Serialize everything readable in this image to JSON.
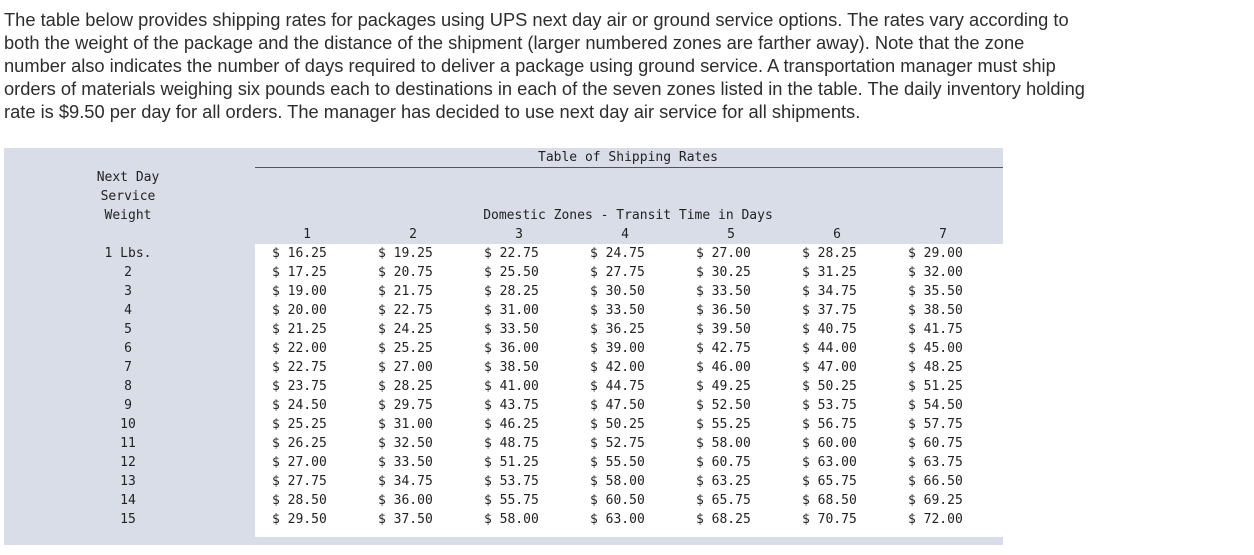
{
  "intro": {
    "lines": [
      "The table below provides shipping rates for packages using UPS next day air or ground service options. The rates vary according to",
      "both the weight of the package and the distance of the shipment (larger numbered zones are farther away). Note that the zone",
      "number also indicates the number of days required to deliver a package using ground service. A transportation manager must ship",
      "orders of materials weighing six pounds each to destinations in each of the seven zones listed in the table. The daily inventory holding",
      "rate is $9.50 per day for all orders. The manager has decided to use next day air service for all shipments."
    ]
  },
  "table": {
    "title": "Table of Shipping Rates",
    "row_header": [
      "Next Day",
      "Service",
      "Weight"
    ],
    "column_group": "Domestic Zones - Transit Time in Days",
    "zones": [
      "1",
      "2",
      "3",
      "4",
      "5",
      "6",
      "7"
    ],
    "rows": [
      {
        "weight": "1 Lbs.",
        "rates": [
          "$ 16.25",
          "$ 19.25",
          "$ 22.75",
          "$ 24.75",
          "$ 27.00",
          "$ 28.25",
          "$ 29.00"
        ]
      },
      {
        "weight": "2",
        "rates": [
          "$ 17.25",
          "$ 20.75",
          "$ 25.50",
          "$ 27.75",
          "$ 30.25",
          "$ 31.25",
          "$ 32.00"
        ]
      },
      {
        "weight": "3",
        "rates": [
          "$ 19.00",
          "$ 21.75",
          "$ 28.25",
          "$ 30.50",
          "$ 33.50",
          "$ 34.75",
          "$ 35.50"
        ]
      },
      {
        "weight": "4",
        "rates": [
          "$ 20.00",
          "$ 22.75",
          "$ 31.00",
          "$ 33.50",
          "$ 36.50",
          "$ 37.75",
          "$ 38.50"
        ]
      },
      {
        "weight": "5",
        "rates": [
          "$ 21.25",
          "$ 24.25",
          "$ 33.50",
          "$ 36.25",
          "$ 39.50",
          "$ 40.75",
          "$ 41.75"
        ]
      },
      {
        "weight": "6",
        "rates": [
          "$ 22.00",
          "$ 25.25",
          "$ 36.00",
          "$ 39.00",
          "$ 42.75",
          "$ 44.00",
          "$ 45.00"
        ]
      },
      {
        "weight": "7",
        "rates": [
          "$ 22.75",
          "$ 27.00",
          "$ 38.50",
          "$ 42.00",
          "$ 46.00",
          "$ 47.00",
          "$ 48.25"
        ]
      },
      {
        "weight": "8",
        "rates": [
          "$ 23.75",
          "$ 28.25",
          "$ 41.00",
          "$ 44.75",
          "$ 49.25",
          "$ 50.25",
          "$ 51.25"
        ]
      },
      {
        "weight": "9",
        "rates": [
          "$ 24.50",
          "$ 29.75",
          "$ 43.75",
          "$ 47.50",
          "$ 52.50",
          "$ 53.75",
          "$ 54.50"
        ]
      },
      {
        "weight": "10",
        "rates": [
          "$ 25.25",
          "$ 31.00",
          "$ 46.25",
          "$ 50.25",
          "$ 55.25",
          "$ 56.75",
          "$ 57.75"
        ]
      },
      {
        "weight": "11",
        "rates": [
          "$ 26.25",
          "$ 32.50",
          "$ 48.75",
          "$ 52.75",
          "$ 58.00",
          "$ 60.00",
          "$ 60.75"
        ]
      },
      {
        "weight": "12",
        "rates": [
          "$ 27.00",
          "$ 33.50",
          "$ 51.25",
          "$ 55.50",
          "$ 60.75",
          "$ 63.00",
          "$ 63.75"
        ]
      },
      {
        "weight": "13",
        "rates": [
          "$ 27.75",
          "$ 34.75",
          "$ 53.75",
          "$ 58.00",
          "$ 63.25",
          "$ 65.75",
          "$ 66.50"
        ]
      },
      {
        "weight": "14",
        "rates": [
          "$ 28.50",
          "$ 36.00",
          "$ 55.75",
          "$ 60.50",
          "$ 65.75",
          "$ 68.50",
          "$ 69.25"
        ]
      },
      {
        "weight": "15",
        "rates": [
          "$ 29.50",
          "$ 37.50",
          "$ 58.00",
          "$ 63.00",
          "$ 68.25",
          "$ 70.75",
          "$ 72.00"
        ]
      }
    ]
  }
}
